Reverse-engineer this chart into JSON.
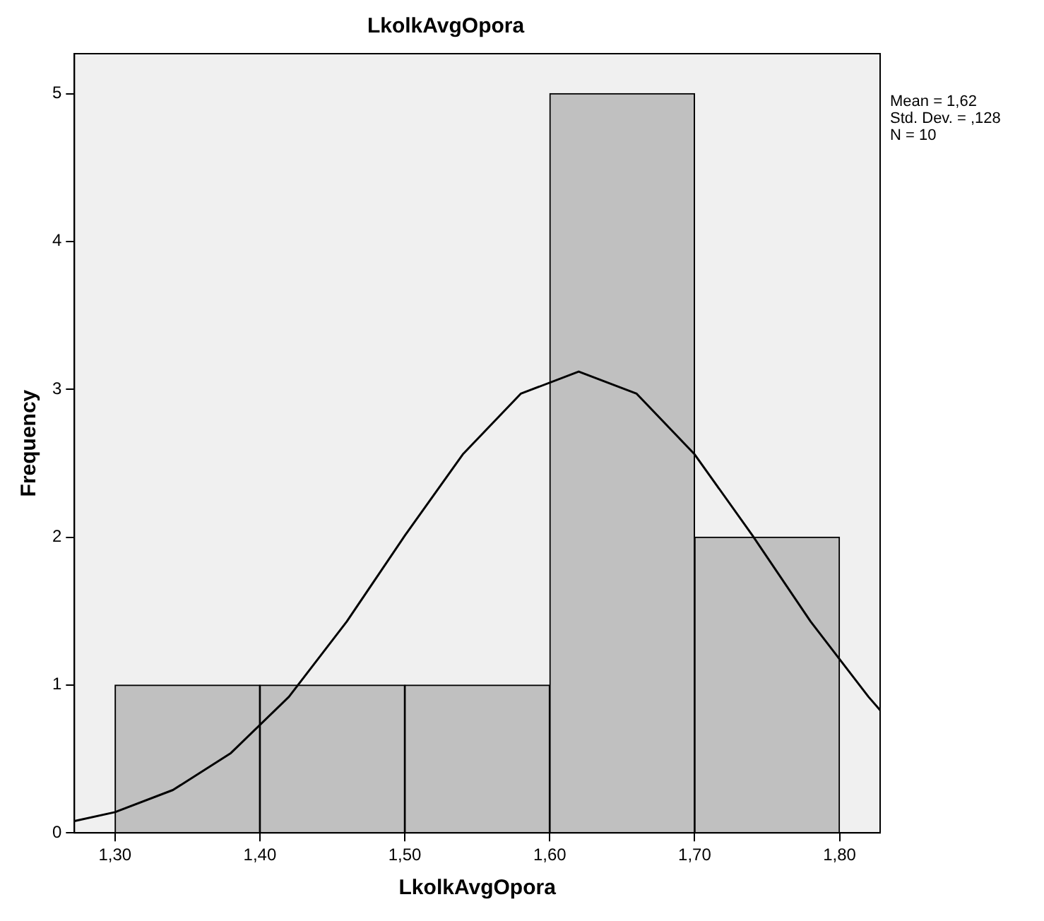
{
  "chart_data": {
    "type": "histogram",
    "title": "LkolkAvgOpora",
    "xlabel": "LkolkAvgOpora",
    "ylabel": "Frequency",
    "bins": [
      1.3,
      1.4,
      1.5,
      1.6,
      1.7,
      1.8
    ],
    "values": [
      1,
      1,
      1,
      5,
      2
    ],
    "color": "#c0c0c0",
    "series": [
      {
        "type": "line",
        "color": "#000000",
        "x": [
          1.272,
          1.3,
          1.34,
          1.38,
          1.42,
          1.46,
          1.5,
          1.54,
          1.58,
          1.62,
          1.66,
          1.7,
          1.74,
          1.78,
          1.82,
          1.828
        ],
        "values": [
          0.08,
          0.14,
          0.29,
          0.54,
          0.92,
          1.43,
          2.01,
          2.56,
          2.97,
          3.12,
          2.97,
          2.56,
          2.01,
          1.43,
          0.92,
          0.83
        ]
      }
    ],
    "xlim": [
      1.272,
      1.828
    ],
    "xticks": [
      {
        "value": 1.3,
        "label": "1,30"
      },
      {
        "value": 1.4,
        "label": "1,40"
      },
      {
        "value": 1.5,
        "label": "1,50"
      },
      {
        "value": 1.6,
        "label": "1,60"
      },
      {
        "value": 1.7,
        "label": "1,70"
      },
      {
        "value": 1.8,
        "label": "1,80"
      }
    ],
    "ylim": [
      0,
      5.27
    ],
    "yticks": [
      0,
      1,
      2,
      3,
      4,
      5
    ],
    "grid": false,
    "annotations": [
      "Mean = 1,62",
      "Std. Dev. = ,128",
      "N = 10"
    ]
  }
}
